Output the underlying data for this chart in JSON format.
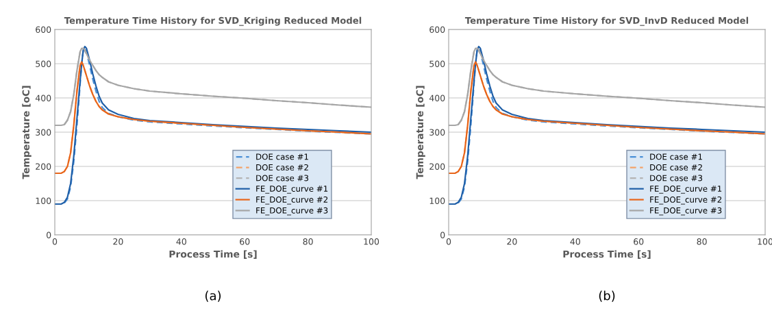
{
  "chart_data": [
    {
      "type": "line",
      "title": "Temperature Time History for SVD_Kriging Reduced Model",
      "xlabel": "Process Time [s]",
      "ylabel": "Temperature [oC]",
      "x": [
        0,
        2,
        3,
        4,
        5,
        6,
        7,
        8,
        8.5,
        9,
        9.5,
        10,
        11,
        12,
        13,
        14,
        15,
        17,
        20,
        25,
        30,
        40,
        50,
        60,
        70,
        80,
        90,
        100
      ],
      "series": [
        {
          "name": "DOE case #1",
          "color": "#4a8fd6",
          "line_style": "dashed",
          "values": [
            90,
            90,
            93,
            105,
            140,
            215,
            320,
            440,
            500,
            540,
            545,
            535,
            495,
            455,
            420,
            390,
            372,
            355,
            345,
            335,
            330,
            324,
            318,
            313,
            308,
            303,
            299,
            295
          ]
        },
        {
          "name": "DOE case #2",
          "color": "#f4a36a",
          "line_style": "dashed",
          "values": [
            180,
            180,
            185,
            200,
            240,
            320,
            420,
            495,
            505,
            495,
            480,
            465,
            435,
            410,
            390,
            375,
            365,
            353,
            345,
            337,
            332,
            326,
            320,
            314,
            309,
            304,
            300,
            295
          ]
        },
        {
          "name": "DOE case #3",
          "color": "#b4b4b4",
          "line_style": "dashed",
          "values": [
            320,
            320,
            322,
            335,
            360,
            410,
            480,
            535,
            543,
            543,
            538,
            528,
            510,
            495,
            480,
            468,
            460,
            447,
            437,
            427,
            420,
            412,
            405,
            399,
            392,
            386,
            379,
            373
          ]
        },
        {
          "name": "FE_DOE_curve #1",
          "color": "#1f5fa8",
          "line_style": "solid",
          "values": [
            90,
            90,
            95,
            110,
            150,
            230,
            340,
            450,
            500,
            540,
            550,
            545,
            510,
            470,
            435,
            405,
            385,
            365,
            352,
            340,
            334,
            328,
            322,
            317,
            312,
            308,
            304,
            300
          ]
        },
        {
          "name": "FE_DOE_curve #2",
          "color": "#e8651a",
          "line_style": "solid",
          "values": [
            180,
            180,
            185,
            200,
            240,
            320,
            420,
            495,
            505,
            495,
            480,
            465,
            435,
            410,
            390,
            375,
            365,
            353,
            345,
            337,
            332,
            326,
            320,
            314,
            309,
            304,
            300,
            295
          ]
        },
        {
          "name": "FE_DOE_curve #3",
          "color": "#a6a6a6",
          "line_style": "solid",
          "values": [
            320,
            320,
            322,
            335,
            360,
            410,
            480,
            535,
            545,
            545,
            540,
            530,
            510,
            495,
            480,
            468,
            460,
            447,
            437,
            427,
            420,
            412,
            405,
            399,
            392,
            386,
            379,
            373
          ]
        }
      ],
      "xlim": [
        0,
        100
      ],
      "xticks": [
        0,
        20,
        40,
        60,
        80,
        100
      ],
      "ylim": [
        0,
        600
      ],
      "yticks": [
        0,
        100,
        200,
        300,
        400,
        500,
        600
      ],
      "grid": "y",
      "legend": "bottom right",
      "annotations": [
        "(a)"
      ]
    },
    {
      "type": "line",
      "title": "Temperature Time History for SVD_InvD Reduced Model",
      "xlabel": "Process Time [s]",
      "ylabel": "Temperature [oC]",
      "x": [
        0,
        2,
        3,
        4,
        5,
        6,
        7,
        8,
        8.5,
        9,
        9.5,
        10,
        11,
        12,
        13,
        14,
        15,
        17,
        20,
        25,
        30,
        40,
        50,
        60,
        70,
        80,
        90,
        100
      ],
      "series": [
        {
          "name": "DOE case #1",
          "color": "#4a8fd6",
          "line_style": "dashed",
          "values": [
            90,
            90,
            93,
            105,
            140,
            215,
            320,
            440,
            500,
            540,
            545,
            535,
            495,
            455,
            420,
            390,
            372,
            355,
            345,
            335,
            330,
            324,
            318,
            313,
            308,
            303,
            299,
            295
          ]
        },
        {
          "name": "DOE case #2",
          "color": "#f4a36a",
          "line_style": "dashed",
          "values": [
            180,
            180,
            185,
            200,
            240,
            320,
            420,
            495,
            505,
            495,
            480,
            465,
            435,
            410,
            390,
            375,
            365,
            353,
            345,
            337,
            332,
            326,
            320,
            314,
            309,
            304,
            300,
            295
          ]
        },
        {
          "name": "DOE case #3",
          "color": "#b4b4b4",
          "line_style": "dashed",
          "values": [
            320,
            320,
            322,
            335,
            360,
            410,
            480,
            535,
            543,
            543,
            538,
            528,
            510,
            495,
            480,
            468,
            460,
            447,
            437,
            427,
            420,
            412,
            405,
            399,
            392,
            386,
            379,
            373
          ]
        },
        {
          "name": "FE_DOE_curve #1",
          "color": "#1f5fa8",
          "line_style": "solid",
          "values": [
            90,
            90,
            95,
            110,
            150,
            230,
            340,
            450,
            500,
            540,
            550,
            545,
            510,
            470,
            435,
            405,
            385,
            365,
            352,
            340,
            334,
            328,
            322,
            317,
            312,
            308,
            304,
            300
          ]
        },
        {
          "name": "FE_DOE_curve #2",
          "color": "#e8651a",
          "line_style": "solid",
          "values": [
            180,
            180,
            185,
            200,
            240,
            320,
            420,
            495,
            505,
            495,
            480,
            465,
            435,
            410,
            390,
            375,
            365,
            353,
            345,
            337,
            332,
            326,
            320,
            314,
            309,
            304,
            300,
            295
          ]
        },
        {
          "name": "FE_DOE_curve #3",
          "color": "#a6a6a6",
          "line_style": "solid",
          "values": [
            320,
            320,
            322,
            335,
            360,
            410,
            480,
            535,
            545,
            545,
            540,
            530,
            510,
            495,
            480,
            468,
            460,
            447,
            437,
            427,
            420,
            412,
            405,
            399,
            392,
            386,
            379,
            373
          ]
        }
      ],
      "xlim": [
        0,
        100
      ],
      "xticks": [
        0,
        20,
        40,
        60,
        80,
        100
      ],
      "ylim": [
        0,
        600
      ],
      "yticks": [
        0,
        100,
        200,
        300,
        400,
        500,
        600
      ],
      "grid": "y",
      "legend": "bottom right",
      "annotations": [
        "(b)"
      ]
    }
  ]
}
